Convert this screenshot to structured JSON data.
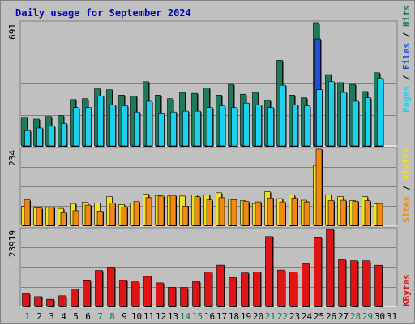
{
  "title": "Daily usage for September 2024",
  "colors": {
    "background": "#c0c0c0",
    "hits": "#1f7a5c",
    "files": "#1e4fd8",
    "pages": "#1ed0f0",
    "visits": "#f2e21d",
    "sites": "#f08a14",
    "kbytes": "#e01414",
    "title": "#0000c0"
  },
  "chart_data": [
    {
      "type": "bar",
      "panel": "hits-files-pages",
      "ymax_label": "691",
      "ylim": [
        0,
        691
      ],
      "categories": [
        "1",
        "2",
        "3",
        "4",
        "5",
        "6",
        "7",
        "8",
        "9",
        "10",
        "11",
        "12",
        "13",
        "14",
        "15",
        "16",
        "17",
        "18",
        "19",
        "20",
        "21",
        "22",
        "23",
        "24",
        "25",
        "26",
        "27",
        "28",
        "29",
        "30",
        "31"
      ],
      "series_labels": [
        "Pages",
        "Files",
        "Hits"
      ],
      "series": [
        {
          "name": "Hits",
          "values": [
            160,
            150,
            165,
            170,
            260,
            265,
            320,
            315,
            285,
            280,
            360,
            285,
            265,
            300,
            295,
            325,
            285,
            345,
            290,
            300,
            255,
            480,
            285,
            270,
            700,
            400,
            355,
            345,
            305,
            410,
            0
          ]
        },
        {
          "name": "Files",
          "values": [
            0,
            0,
            0,
            0,
            0,
            0,
            0,
            0,
            0,
            0,
            0,
            0,
            0,
            0,
            0,
            0,
            0,
            0,
            0,
            0,
            0,
            0,
            0,
            0,
            600,
            0,
            0,
            0,
            0,
            0,
            0
          ]
        },
        {
          "name": "Pages",
          "values": [
            85,
            100,
            110,
            125,
            215,
            215,
            280,
            230,
            225,
            190,
            250,
            180,
            190,
            195,
            195,
            215,
            225,
            215,
            240,
            230,
            215,
            340,
            230,
            225,
            315,
            360,
            300,
            250,
            270,
            380,
            0
          ]
        }
      ]
    },
    {
      "type": "bar",
      "panel": "visits-sites",
      "ymax_label": "234",
      "ylim": [
        0,
        234
      ],
      "categories": [
        "1",
        "2",
        "3",
        "4",
        "5",
        "6",
        "7",
        "8",
        "9",
        "10",
        "11",
        "12",
        "13",
        "14",
        "15",
        "16",
        "17",
        "18",
        "19",
        "20",
        "21",
        "22",
        "23",
        "24",
        "25",
        "26",
        "27",
        "28",
        "29",
        "30",
        "31"
      ],
      "series_labels": [
        "Sites",
        "Visits"
      ],
      "series": [
        {
          "name": "Visits",
          "values": [
            58,
            53,
            55,
            52,
            67,
            71,
            69,
            88,
            64,
            69,
            96,
            92,
            90,
            90,
            93,
            94,
            100,
            80,
            76,
            67,
            103,
            82,
            93,
            77,
            184,
            94,
            88,
            76,
            88,
            66,
            0
          ]
        },
        {
          "name": "Sites",
          "values": [
            78,
            53,
            56,
            39,
            45,
            62,
            44,
            68,
            56,
            73,
            85,
            90,
            92,
            59,
            88,
            78,
            85,
            79,
            73,
            72,
            84,
            72,
            84,
            72,
            234,
            76,
            77,
            74,
            76,
            67,
            0
          ]
        }
      ]
    },
    {
      "type": "bar",
      "panel": "kbytes",
      "ymax_label": "23919",
      "ylim": [
        0,
        23919
      ],
      "categories": [
        "1",
        "2",
        "3",
        "4",
        "5",
        "6",
        "7",
        "8",
        "9",
        "10",
        "11",
        "12",
        "13",
        "14",
        "15",
        "16",
        "17",
        "18",
        "19",
        "20",
        "21",
        "22",
        "23",
        "24",
        "25",
        "26",
        "27",
        "28",
        "29",
        "30",
        "31"
      ],
      "series_labels": [
        "KBytes"
      ],
      "series": [
        {
          "name": "KBytes",
          "values": [
            3900,
            3050,
            2230,
            3320,
            5380,
            7980,
            11200,
            11970,
            8070,
            7630,
            9320,
            7330,
            5940,
            5860,
            7680,
            10690,
            12820,
            8960,
            10410,
            10730,
            21710,
            11300,
            10690,
            13220,
            21340,
            24930,
            14480,
            14190,
            14170,
            12790,
            0
          ]
        }
      ]
    }
  ],
  "x_labels": [
    "1",
    "2",
    "3",
    "4",
    "5",
    "6",
    "7",
    "8",
    "9",
    "10",
    "11",
    "12",
    "13",
    "14",
    "15",
    "16",
    "17",
    "18",
    "19",
    "20",
    "21",
    "22",
    "23",
    "24",
    "25",
    "26",
    "27",
    "28",
    "29",
    "30",
    "31"
  ],
  "weekend_days": [
    1,
    7,
    8,
    14,
    15,
    21,
    22,
    28,
    29
  ],
  "weekend_label_color": "#0b7a4a",
  "weekday_label_color": "#000000"
}
